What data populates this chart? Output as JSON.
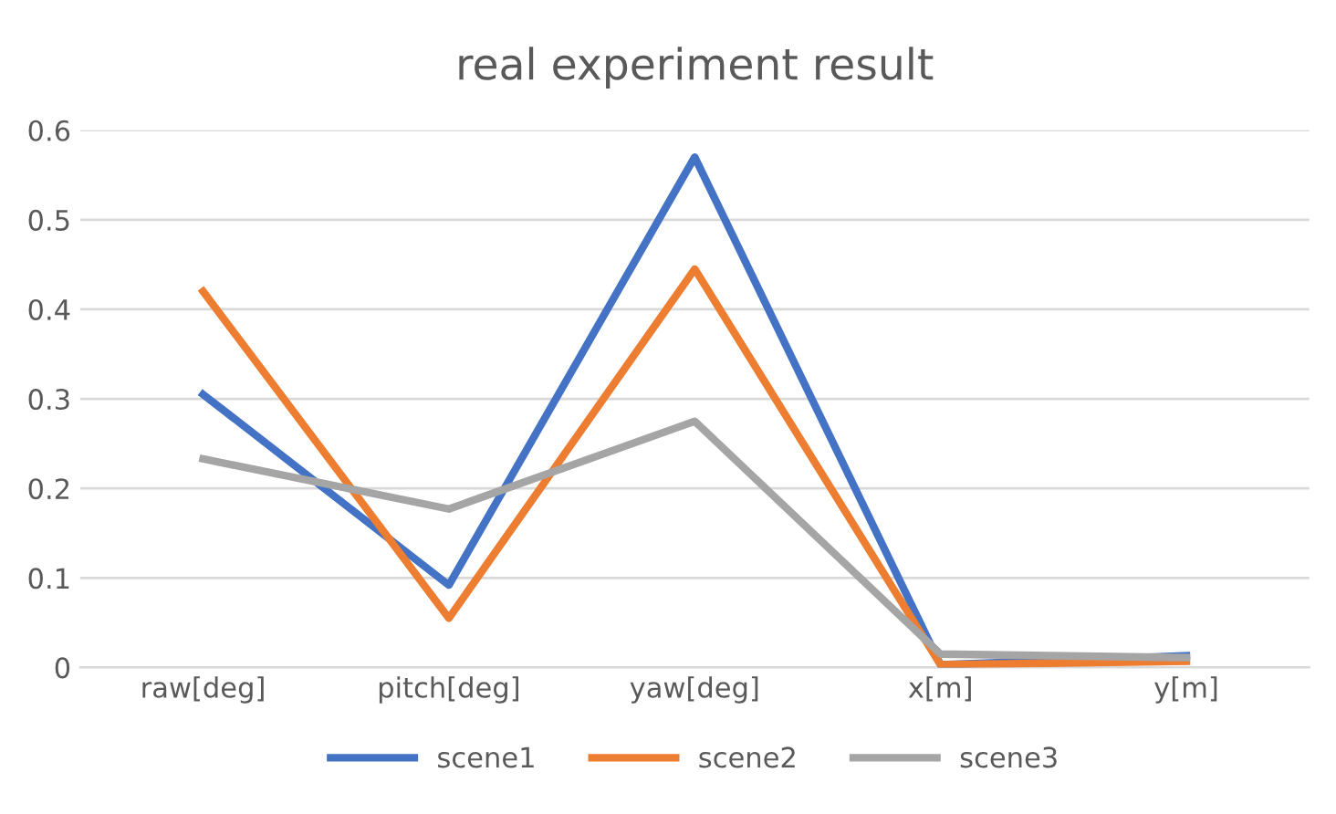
{
  "chart_data": {
    "type": "line",
    "title": "real experiment result",
    "categories": [
      "raw[deg]",
      "pitch[deg]",
      "yaw[deg]",
      "x[m]",
      "y[m]"
    ],
    "series": [
      {
        "name": "scene1",
        "color": "#4472c4",
        "values": [
          0.305,
          0.092,
          0.57,
          0.003,
          0.013
        ]
      },
      {
        "name": "scene2",
        "color": "#ed7d31",
        "values": [
          0.42,
          0.055,
          0.445,
          0.003,
          0.007
        ]
      },
      {
        "name": "scene3",
        "color": "#a5a5a5",
        "values": [
          0.233,
          0.177,
          0.275,
          0.015,
          0.011
        ]
      }
    ],
    "ylim": [
      0,
      0.6
    ],
    "yticks": [
      0,
      {
        "value": 0.1,
        "label": "0.1"
      },
      {
        "value": 0.2,
        "label": "0.2"
      },
      {
        "value": 0.3,
        "label": "0.3"
      },
      {
        "value": 0.4,
        "label": "0.4"
      },
      {
        "value": 0.5,
        "label": "0.5"
      },
      {
        "value": 0.6,
        "label": "0.6"
      }
    ],
    "grid": "y",
    "legend": "bottom",
    "marker": "none",
    "line_style": "solid"
  }
}
